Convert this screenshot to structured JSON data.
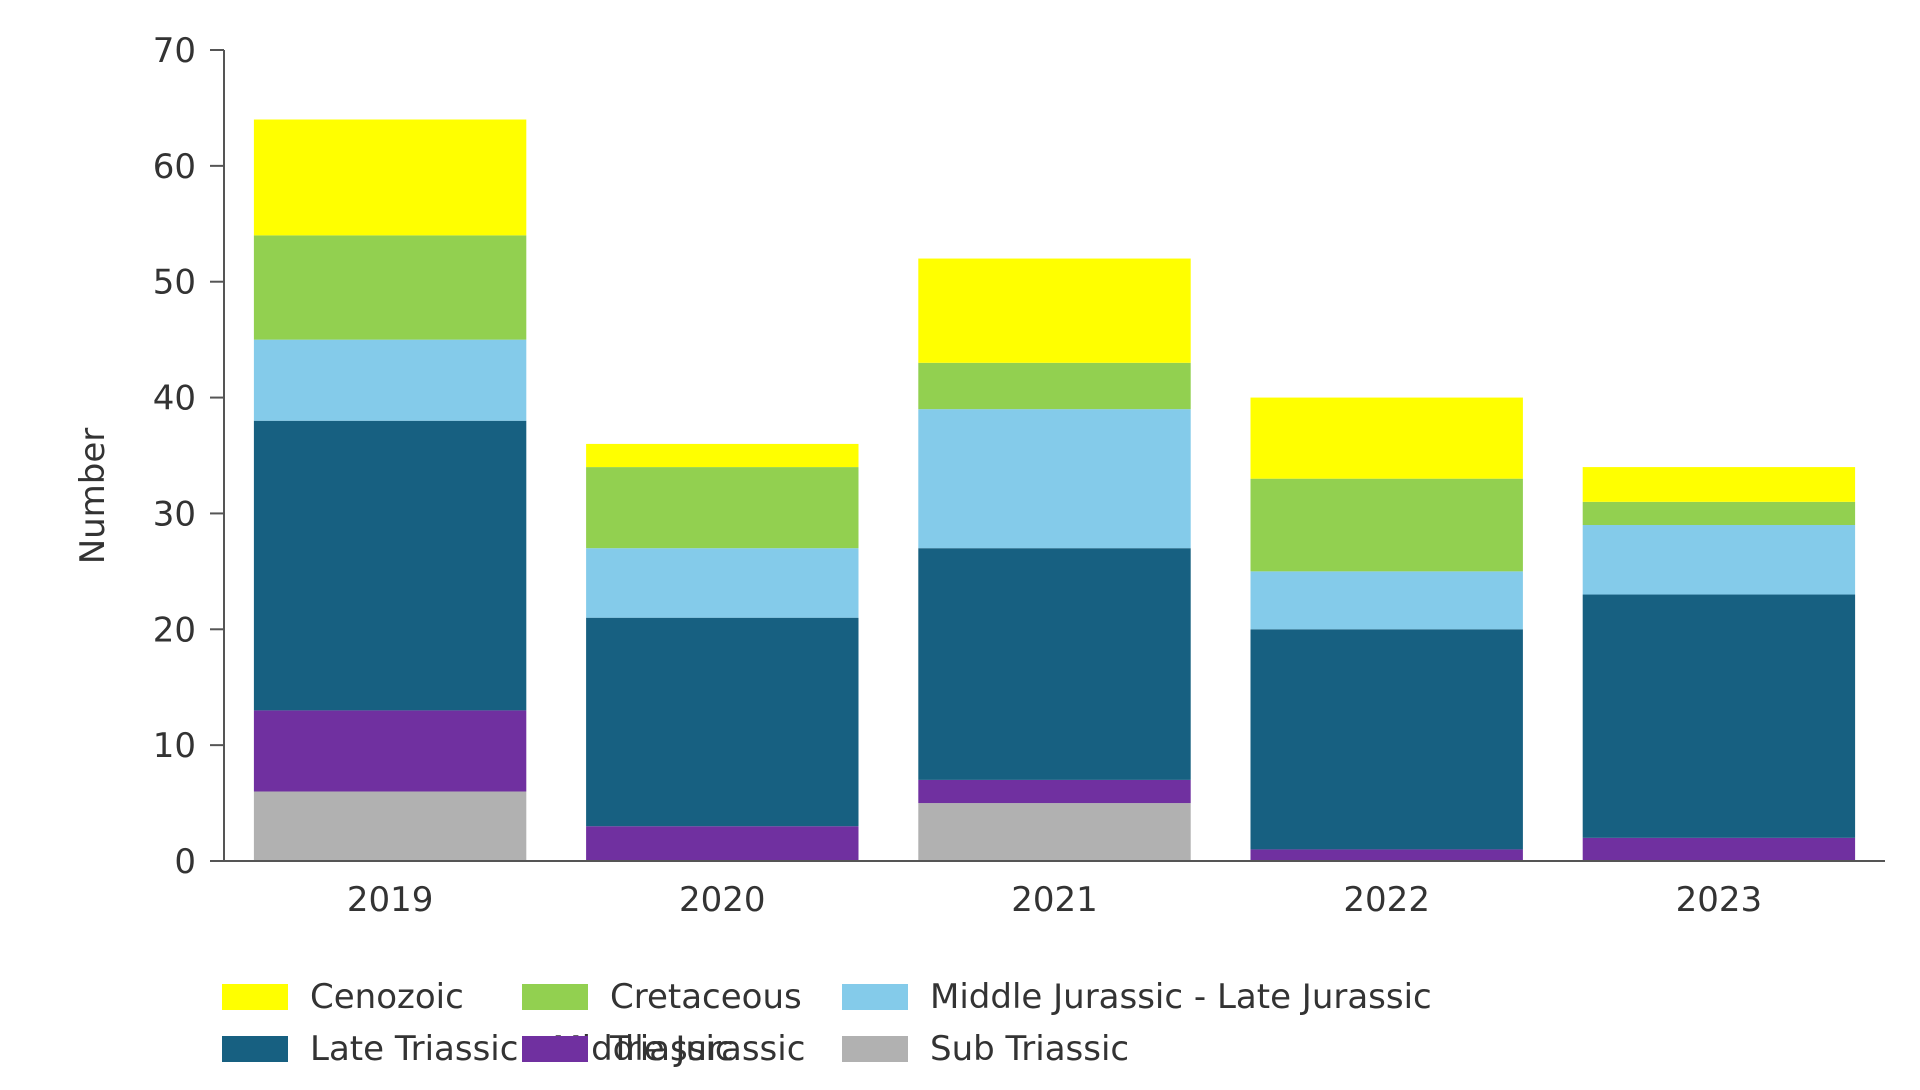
{
  "chart_data": {
    "type": "bar",
    "stacked": true,
    "title": "",
    "xlabel": "",
    "ylabel": "Number",
    "ylim": [
      0,
      70
    ],
    "yticks": [
      0,
      10,
      20,
      30,
      40,
      50,
      60,
      70
    ],
    "grid": false,
    "legend_position": "bottom",
    "categories": [
      "2019",
      "2020",
      "2021",
      "2022",
      "2023"
    ],
    "series": [
      {
        "name": "Sub Triassic",
        "color": "#b1b1b1",
        "values": [
          6,
          0,
          5,
          0,
          0
        ]
      },
      {
        "name": "Triassic",
        "color": "#7030a0",
        "values": [
          7,
          3,
          2,
          1,
          2
        ]
      },
      {
        "name": "Late Triassic - Middle Jurassic",
        "color": "#176081",
        "values": [
          25,
          18,
          20,
          19,
          21
        ]
      },
      {
        "name": "Middle Jurassic - Late Jurassic",
        "color": "#84cbea",
        "values": [
          7,
          6,
          12,
          5,
          6
        ]
      },
      {
        "name": "Cretaceous",
        "color": "#92d050",
        "values": [
          9,
          7,
          4,
          8,
          2
        ]
      },
      {
        "name": "Cenozoic",
        "color": "#ffff00",
        "values": [
          10,
          2,
          9,
          7,
          3
        ]
      }
    ],
    "legend_order": [
      "Cenozoic",
      "Cretaceous",
      "Middle Jurassic - Late Jurassic",
      "Late Triassic - Middle Jurassic",
      "Triassic",
      "Sub Triassic"
    ]
  }
}
